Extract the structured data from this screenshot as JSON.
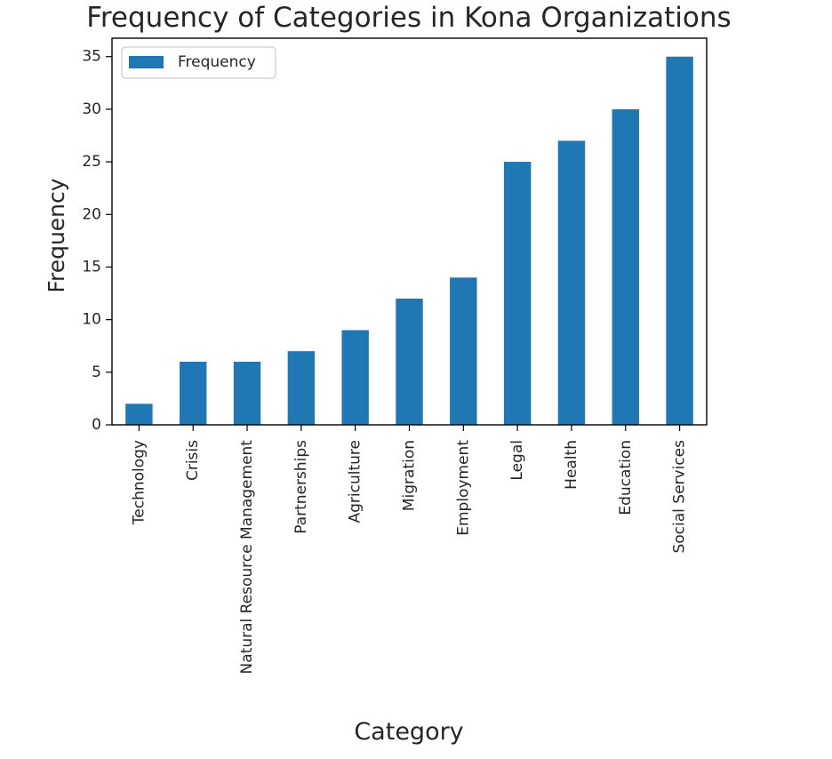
{
  "chart_data": {
    "type": "bar",
    "title": "Frequency of Categories in Kona Organizations",
    "xlabel": "Category",
    "ylabel": "Frequency",
    "categories": [
      "Technology",
      "Crisis",
      "Natural Resource Management",
      "Partnerships",
      "Agriculture",
      "Migration",
      "Employment",
      "Legal",
      "Health",
      "Education",
      "Social Services"
    ],
    "series": [
      {
        "name": "Frequency",
        "values": [
          2,
          6,
          6,
          7,
          9,
          12,
          14,
          25,
          27,
          30,
          35
        ],
        "color": "#1f77b4"
      }
    ],
    "ylim": [
      0,
      36.75
    ],
    "yticks": [
      0,
      5,
      10,
      15,
      20,
      25,
      30,
      35
    ],
    "grid": false,
    "legend": {
      "position": "upper-left"
    },
    "colors": {
      "bar": "#1f77b4",
      "axis": "#000000",
      "text": "#262626"
    }
  }
}
